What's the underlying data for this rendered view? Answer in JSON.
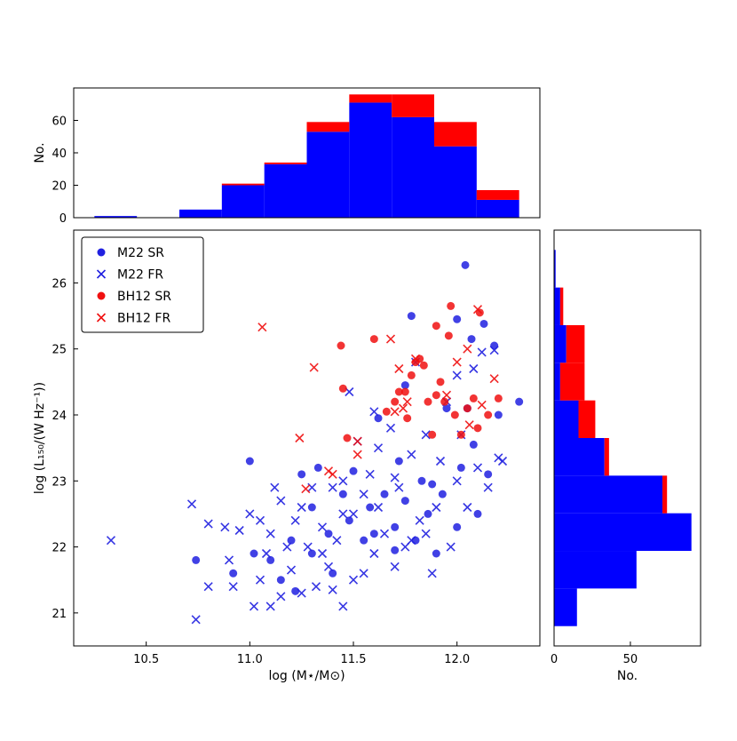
{
  "chart_data": [
    {
      "type": "scatter",
      "xlabel": "log (M⋆/M⊙)",
      "ylabel": "log (L₁₅₀/(W Hz⁻¹))",
      "xlim": [
        10.15,
        12.4
      ],
      "ylim": [
        20.5,
        26.8
      ],
      "xticks": [
        10.5,
        {
          "value": 11.0,
          "label": "11.0"
        },
        11.5,
        {
          "value": 12.0,
          "label": "12.0"
        }
      ],
      "yticks": [
        21,
        22,
        23,
        24,
        25,
        26
      ],
      "legend": "upper left",
      "series": [
        {
          "name": "M22 SR",
          "color": "#2020e0",
          "marker": "o",
          "x": [
            10.74,
            10.92,
            11.0,
            11.02,
            11.15,
            11.22,
            11.25,
            11.3,
            11.33,
            11.38,
            11.45,
            11.5,
            11.55,
            11.58,
            11.62,
            11.65,
            11.7,
            11.72,
            11.75,
            11.75,
            11.78,
            11.8,
            11.83,
            11.86,
            11.9,
            11.93,
            11.95,
            12.0,
            12.0,
            12.04,
            12.05,
            12.07,
            12.08,
            12.1,
            12.13,
            12.15,
            12.18,
            12.2,
            12.3,
            11.88,
            11.6,
            11.4,
            11.48,
            11.7,
            12.02,
            11.2,
            11.1,
            11.3
          ],
          "y": [
            21.8,
            21.6,
            23.3,
            21.9,
            21.5,
            21.33,
            23.1,
            22.6,
            23.2,
            22.2,
            22.8,
            23.15,
            22.1,
            22.6,
            23.95,
            22.8,
            22.3,
            23.3,
            24.45,
            22.7,
            25.5,
            22.1,
            23.0,
            22.5,
            21.9,
            22.8,
            24.1,
            22.3,
            25.45,
            26.27,
            24.1,
            25.15,
            23.55,
            22.5,
            25.38,
            23.1,
            25.05,
            24.0,
            24.2,
            22.95,
            22.2,
            21.6,
            22.4,
            21.95,
            23.2,
            22.1,
            21.8,
            21.9
          ]
        },
        {
          "name": "M22 FR",
          "color": "#2020e0",
          "marker": "x",
          "x": [
            10.33,
            10.72,
            10.74,
            10.8,
            10.8,
            10.88,
            10.9,
            10.92,
            10.95,
            11.0,
            11.02,
            11.05,
            11.05,
            11.08,
            11.1,
            11.1,
            11.12,
            11.15,
            11.18,
            11.2,
            11.22,
            11.25,
            11.28,
            11.3,
            11.32,
            11.35,
            11.38,
            11.4,
            11.42,
            11.45,
            11.45,
            11.48,
            11.5,
            11.52,
            11.55,
            11.55,
            11.58,
            11.6,
            11.62,
            11.65,
            11.68,
            11.7,
            11.72,
            11.75,
            11.78,
            11.8,
            11.82,
            11.85,
            11.88,
            11.9,
            11.92,
            11.95,
            11.97,
            12.0,
            12.02,
            12.05,
            12.08,
            12.1,
            12.12,
            12.15,
            12.18,
            12.2,
            12.22,
            11.6,
            11.35,
            11.25,
            11.15,
            11.45,
            11.7,
            11.85,
            12.0,
            11.5,
            11.4,
            11.62,
            11.78
          ],
          "y": [
            22.1,
            22.65,
            20.9,
            22.35,
            21.4,
            22.3,
            21.8,
            21.4,
            22.25,
            22.5,
            21.1,
            22.4,
            21.5,
            21.9,
            22.2,
            21.1,
            22.9,
            22.7,
            22.0,
            21.65,
            22.4,
            21.3,
            22.0,
            22.9,
            21.4,
            22.3,
            21.7,
            22.9,
            22.1,
            21.1,
            23.0,
            24.35,
            22.5,
            23.6,
            21.6,
            22.8,
            23.1,
            21.9,
            23.5,
            22.2,
            23.8,
            21.7,
            22.9,
            22.0,
            23.4,
            24.8,
            22.4,
            23.7,
            21.6,
            22.6,
            23.3,
            24.2,
            22.0,
            23.0,
            23.7,
            22.6,
            24.7,
            23.2,
            24.95,
            22.9,
            24.98,
            23.35,
            23.3,
            24.05,
            21.9,
            22.6,
            21.25,
            22.5,
            23.05,
            22.2,
            24.6,
            21.5,
            21.35,
            22.6,
            22.1
          ]
        },
        {
          "name": "BH12 SR",
          "color": "#f01010",
          "marker": "o",
          "x": [
            11.44,
            11.45,
            11.47,
            11.6,
            11.66,
            11.7,
            11.72,
            11.75,
            11.78,
            11.8,
            11.82,
            11.84,
            11.86,
            11.88,
            11.9,
            11.92,
            11.94,
            11.96,
            11.97,
            11.99,
            12.02,
            12.05,
            12.08,
            12.1,
            12.11,
            12.15,
            12.2,
            11.76,
            11.9
          ],
          "y": [
            25.05,
            24.4,
            23.65,
            25.15,
            24.05,
            24.2,
            24.35,
            24.35,
            24.6,
            24.8,
            24.85,
            24.75,
            24.2,
            23.7,
            25.35,
            24.5,
            24.2,
            25.2,
            25.65,
            24.0,
            23.7,
            24.1,
            24.25,
            23.8,
            25.55,
            24.0,
            24.25,
            23.95,
            24.3
          ]
        },
        {
          "name": "BH12 FR",
          "color": "#f01010",
          "marker": "x",
          "x": [
            11.06,
            11.24,
            11.27,
            11.31,
            11.38,
            11.4,
            11.52,
            11.52,
            11.68,
            11.72,
            11.74,
            11.76,
            11.8,
            11.95,
            12.0,
            12.05,
            12.06,
            12.1,
            12.12,
            12.18,
            11.7
          ],
          "y": [
            25.33,
            23.65,
            22.88,
            24.72,
            23.15,
            23.1,
            23.6,
            23.4,
            25.15,
            24.7,
            24.1,
            24.2,
            24.85,
            24.3,
            24.8,
            25.0,
            23.85,
            25.6,
            24.15,
            24.55,
            24.05
          ]
        }
      ]
    },
    {
      "type": "histogram",
      "orientation": "vertical",
      "ylabel": "No.",
      "xlim": [
        10.15,
        12.4
      ],
      "ylim": [
        0,
        80
      ],
      "yticks": [
        0,
        20,
        40,
        60
      ],
      "bins": [
        10.25,
        10.455,
        10.66,
        10.865,
        11.07,
        11.275,
        11.48,
        11.685,
        11.89,
        12.095,
        12.3
      ],
      "series": [
        {
          "name": "M22",
          "color": "#0000ff",
          "values": [
            1,
            0,
            5,
            20,
            33,
            53,
            71,
            62,
            44,
            11
          ]
        },
        {
          "name": "BH12",
          "color": "#ff0000",
          "values": [
            0,
            0,
            0,
            1,
            1,
            6,
            5,
            14,
            15,
            6
          ]
        }
      ]
    },
    {
      "type": "histogram",
      "orientation": "horizontal",
      "xlabel": "No.",
      "xlim": [
        0,
        96
      ],
      "ylim": [
        20.5,
        26.8
      ],
      "xticks": [
        0,
        50
      ],
      "bins": [
        20.8,
        21.37,
        21.94,
        22.51,
        23.08,
        23.65,
        24.22,
        24.79,
        25.36,
        25.93,
        26.5
      ],
      "series": [
        {
          "name": "M22",
          "color": "#0000ff",
          "values": [
            15,
            54,
            90,
            71,
            33,
            16,
            4,
            8,
            4,
            1
          ]
        },
        {
          "name": "BH12",
          "color": "#ff0000",
          "values": [
            0,
            0,
            0,
            3,
            3,
            11,
            16,
            12,
            2,
            0
          ]
        }
      ]
    }
  ]
}
